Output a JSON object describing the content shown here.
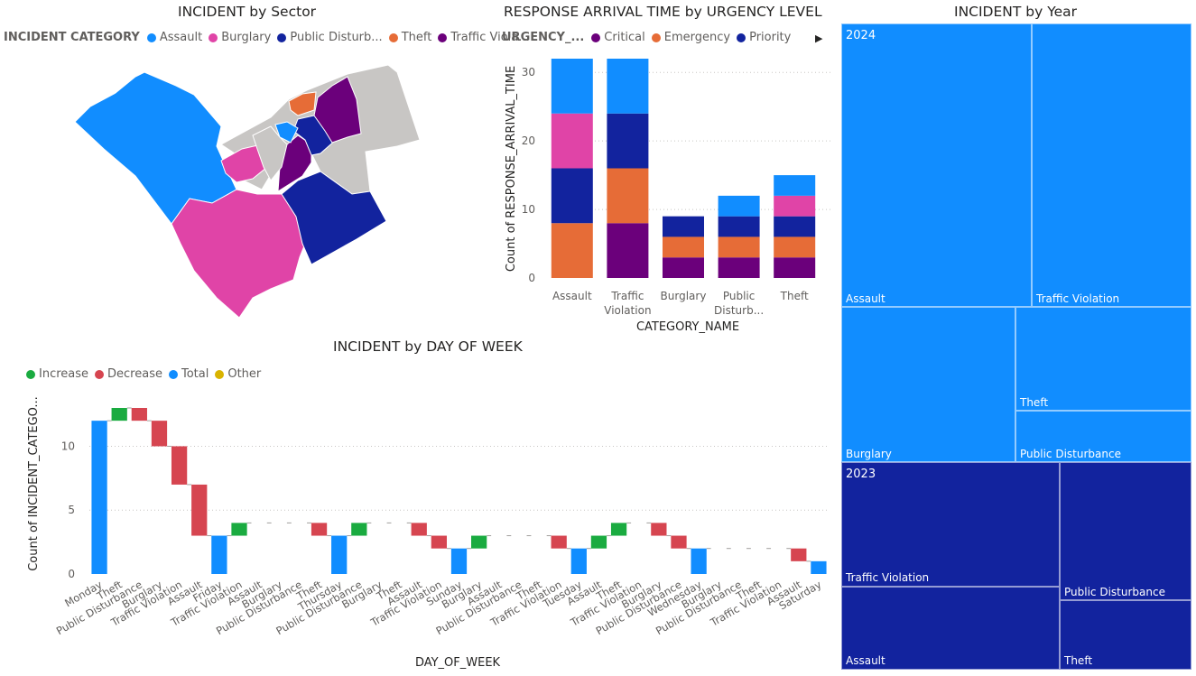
{
  "colors": {
    "assault": "#118DFF",
    "burglary": "#E044A7",
    "public_disturbance": "#12239E",
    "theft": "#E66C37",
    "traffic_violation": "#6B007B",
    "critical": "#6B007B",
    "emergency": "#E66C37",
    "priority": "#12239E",
    "increase": "#1AAB40",
    "decrease": "#D64550",
    "total": "#118DFF",
    "other": "#D9B300",
    "map_other": "#C8C6C4",
    "grid": "#C8C6C4"
  },
  "map_visual": {
    "title": "INCIDENT by Sector",
    "legend_title": "INCIDENT CATEGORY",
    "legend": [
      "Assault",
      "Burglary",
      "Public Disturb...",
      "Theft",
      "Traffic Viola..."
    ]
  },
  "bar_visual": {
    "title": "RESPONSE ARRIVAL TIME by URGENCY LEVEL",
    "legend_title": "URGENCY_...",
    "legend": [
      "Critical",
      "Emergency",
      "Priority"
    ],
    "more_icon": "chevron-right-icon"
  },
  "waterfall_visual": {
    "title": "INCIDENT by DAY OF WEEK",
    "legend": [
      "Increase",
      "Decrease",
      "Total",
      "Other"
    ]
  },
  "treemap_visual": {
    "title": "INCIDENT by Year"
  },
  "chart_data": [
    {
      "type": "map",
      "title": "INCIDENT by Sector",
      "legend_title": "INCIDENT CATEGORY",
      "series": [
        "Assault",
        "Burglary",
        "Public Disturb...",
        "Theft",
        "Traffic Viola..."
      ]
    },
    {
      "type": "bar",
      "stacked": true,
      "title": "RESPONSE ARRIVAL TIME by URGENCY LEVEL",
      "xlabel": "CATEGORY_NAME",
      "ylabel": "Count of RESPONSE_ARRIVAL_TIME",
      "ylim": [
        0,
        32
      ],
      "yticks": [
        0,
        10,
        20,
        30
      ],
      "categories": [
        "Assault",
        "Traffic Violation",
        "Burglary",
        "Public Disturb...",
        "Theft"
      ],
      "category_labels": [
        [
          "Assault"
        ],
        [
          "Traffic",
          "Violation"
        ],
        [
          "Burglary"
        ],
        [
          "Public",
          "Disturb..."
        ],
        [
          "Theft"
        ]
      ],
      "segments": [
        [
          {
            "c": "theft",
            "v": 8
          },
          {
            "c": "public_disturbance",
            "v": 8
          },
          {
            "c": "burglary",
            "v": 8
          },
          {
            "c": "assault",
            "v": 8
          }
        ],
        [
          {
            "c": "traffic_violation",
            "v": 8
          },
          {
            "c": "theft",
            "v": 8
          },
          {
            "c": "public_disturbance",
            "v": 8
          },
          {
            "c": "assault",
            "v": 8
          }
        ],
        [
          {
            "c": "traffic_violation",
            "v": 3
          },
          {
            "c": "theft",
            "v": 3
          },
          {
            "c": "public_disturbance",
            "v": 3
          }
        ],
        [
          {
            "c": "traffic_violation",
            "v": 3
          },
          {
            "c": "theft",
            "v": 3
          },
          {
            "c": "public_disturbance",
            "v": 3
          },
          {
            "c": "assault",
            "v": 3
          }
        ],
        [
          {
            "c": "traffic_violation",
            "v": 3
          },
          {
            "c": "theft",
            "v": 3
          },
          {
            "c": "public_disturbance",
            "v": 3
          },
          {
            "c": "burglary",
            "v": 3
          },
          {
            "c": "assault",
            "v": 3
          }
        ]
      ],
      "legend_title": "URGENCY_...",
      "legend": [
        "Critical",
        "Emergency",
        "Priority"
      ],
      "grid": true
    },
    {
      "type": "waterfall",
      "title": "INCIDENT by DAY OF WEEK",
      "xlabel": "DAY_OF_WEEK",
      "ylabel": "Count of INCIDENT_CATEGO...",
      "ylim": [
        0,
        13
      ],
      "yticks": [
        0,
        5,
        10
      ],
      "legend": [
        "Increase",
        "Decrease",
        "Total",
        "Other"
      ],
      "grid": true,
      "steps": [
        {
          "label": "Monday",
          "kind": "total",
          "from": 0,
          "to": 12
        },
        {
          "label": "Theft",
          "kind": "increase",
          "from": 12,
          "to": 13
        },
        {
          "label": "Public Disturbance",
          "kind": "decrease",
          "from": 13,
          "to": 12
        },
        {
          "label": "Burglary",
          "kind": "decrease",
          "from": 12,
          "to": 10
        },
        {
          "label": "Traffic Violation",
          "kind": "decrease",
          "from": 10,
          "to": 7
        },
        {
          "label": "Assault",
          "kind": "decrease",
          "from": 7,
          "to": 3
        },
        {
          "label": "Friday",
          "kind": "total",
          "from": 0,
          "to": 3
        },
        {
          "label": "Traffic Violation",
          "kind": "increase",
          "from": 3,
          "to": 4
        },
        {
          "label": "Assault",
          "kind": "flat",
          "from": 4,
          "to": 4
        },
        {
          "label": "Burglary",
          "kind": "flat",
          "from": 4,
          "to": 4
        },
        {
          "label": "Public Disturbance",
          "kind": "flat",
          "from": 4,
          "to": 4
        },
        {
          "label": "Theft",
          "kind": "decrease",
          "from": 4,
          "to": 3
        },
        {
          "label": "Thursday",
          "kind": "total",
          "from": 0,
          "to": 3
        },
        {
          "label": "Public Disturbance",
          "kind": "increase",
          "from": 3,
          "to": 4
        },
        {
          "label": "Burglary",
          "kind": "flat",
          "from": 4,
          "to": 4
        },
        {
          "label": "Theft",
          "kind": "flat",
          "from": 4,
          "to": 4
        },
        {
          "label": "Assault",
          "kind": "decrease",
          "from": 4,
          "to": 3
        },
        {
          "label": "Traffic Violation",
          "kind": "decrease",
          "from": 3,
          "to": 2
        },
        {
          "label": "Sunday",
          "kind": "total",
          "from": 0,
          "to": 2
        },
        {
          "label": "Burglary",
          "kind": "increase",
          "from": 2,
          "to": 3
        },
        {
          "label": "Assault",
          "kind": "flat",
          "from": 3,
          "to": 3
        },
        {
          "label": "Public Disturbance",
          "kind": "flat",
          "from": 3,
          "to": 3
        },
        {
          "label": "Theft",
          "kind": "flat",
          "from": 3,
          "to": 3
        },
        {
          "label": "Traffic Violation",
          "kind": "decrease",
          "from": 3,
          "to": 2
        },
        {
          "label": "Tuesday",
          "kind": "total",
          "from": 0,
          "to": 2
        },
        {
          "label": "Assault",
          "kind": "increase",
          "from": 2,
          "to": 3
        },
        {
          "label": "Theft",
          "kind": "increase",
          "from": 3,
          "to": 4
        },
        {
          "label": "Traffic Violation",
          "kind": "flat",
          "from": 4,
          "to": 4
        },
        {
          "label": "Burglary",
          "kind": "decrease",
          "from": 4,
          "to": 3
        },
        {
          "label": "Public Disturbance",
          "kind": "decrease",
          "from": 3,
          "to": 2
        },
        {
          "label": "Wednesday",
          "kind": "total",
          "from": 0,
          "to": 2
        },
        {
          "label": "Burglary",
          "kind": "flat",
          "from": 2,
          "to": 2
        },
        {
          "label": "Public Disturbance",
          "kind": "flat",
          "from": 2,
          "to": 2
        },
        {
          "label": "Theft",
          "kind": "flat",
          "from": 2,
          "to": 2
        },
        {
          "label": "Traffic Violation",
          "kind": "flat",
          "from": 2,
          "to": 2
        },
        {
          "label": "Assault",
          "kind": "decrease",
          "from": 2,
          "to": 1
        },
        {
          "label": "Saturday",
          "kind": "total",
          "from": 0,
          "to": 1
        }
      ]
    },
    {
      "type": "treemap",
      "title": "INCIDENT by Year",
      "groups": [
        {
          "label": "2024",
          "color": "#118DFF",
          "items": [
            "Assault",
            "Traffic Violation",
            "Burglary",
            "Theft",
            "Public Disturbance"
          ]
        },
        {
          "label": "2023",
          "color": "#12239E",
          "items": [
            "Traffic Violation",
            "Assault",
            "Public Disturbance",
            "Theft"
          ]
        }
      ]
    }
  ]
}
